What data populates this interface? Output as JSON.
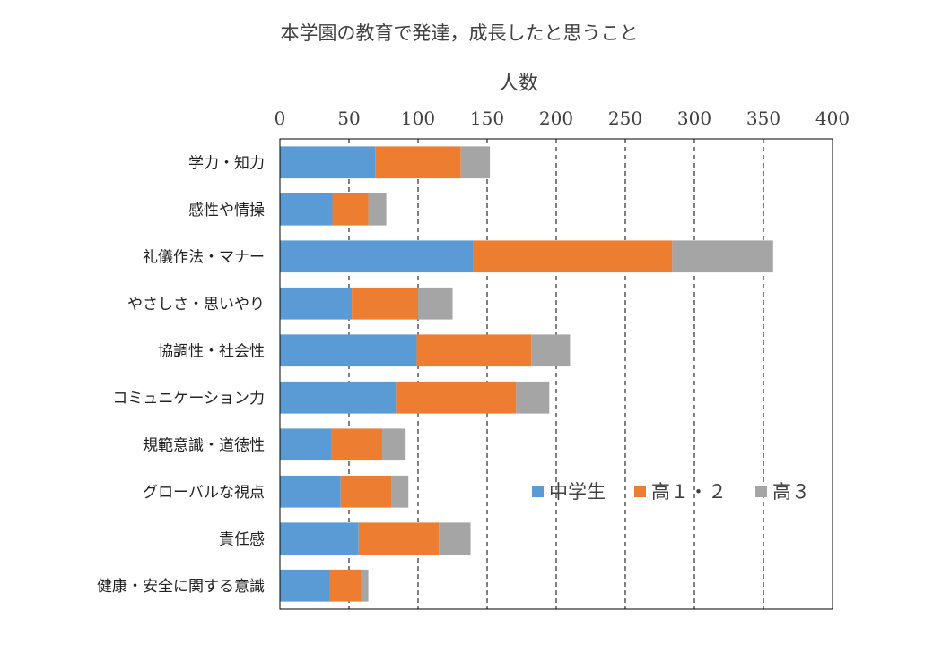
{
  "chart_data": {
    "type": "bar",
    "orientation": "horizontal",
    "stacked": true,
    "title": "本学園の教育で発達，成長したと思うこと",
    "xlabel": "人数",
    "xlim": [
      0,
      400
    ],
    "xticks": [
      0,
      50,
      100,
      150,
      200,
      250,
      300,
      350,
      400
    ],
    "grid": "vertical dashed",
    "axis_position": "top",
    "legend_position": "right",
    "categories": [
      "学力・知力",
      "感性や情操",
      "礼儀作法・マナー",
      "やさしさ・思いやり",
      "協調性・社会性",
      "コミュニケーション力",
      "規範意識・道徳性",
      "グローバルな視点",
      "責任感",
      "健康・安全に関する意識"
    ],
    "series": [
      {
        "name": "中学生",
        "color": "#5b9bd5",
        "values": [
          69,
          38,
          140,
          52,
          99,
          84,
          37,
          44,
          57,
          36
        ]
      },
      {
        "name": "高１・２",
        "color": "#ed7d31",
        "values": [
          62,
          26,
          144,
          48,
          83,
          87,
          37,
          37,
          58,
          23
        ]
      },
      {
        "name": "高３",
        "color": "#a5a5a5",
        "values": [
          21,
          13,
          73,
          25,
          28,
          24,
          17,
          12,
          23,
          5
        ]
      }
    ]
  }
}
